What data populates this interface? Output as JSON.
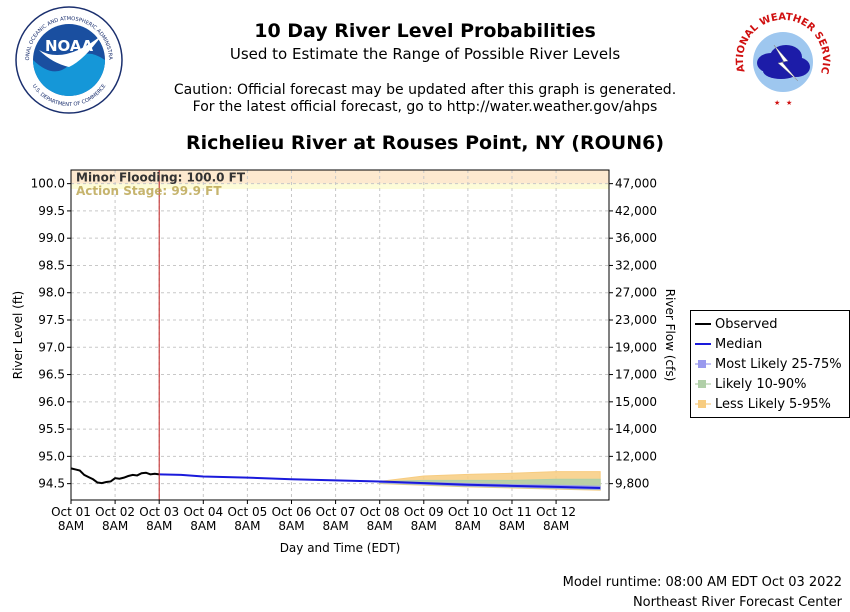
{
  "header": {
    "title": "10 Day River Level Probabilities",
    "subtitle": "Used to Estimate the Range of Possible River Levels",
    "caution_line1": "Caution: Official forecast may be updated after this graph is generated.",
    "caution_line2": "For the latest official forecast, go to http://water.weather.gov/ahps",
    "station": "Richelieu River at Rouses Point, NY (ROUN6)"
  },
  "logos": {
    "noaa_text": "NOAA",
    "noaa_ring_top": "NATIONAL OCEANIC AND ATMOSPHERIC ADMINISTRATION",
    "noaa_ring_bottom": "U.S. DEPARTMENT OF COMMERCE",
    "nws_ring": "NATIONAL WEATHER SERVICE"
  },
  "footer": {
    "model_runtime": "Model runtime: 08:00 AM EDT Oct 03 2022",
    "center": "Northeast River Forecast Center"
  },
  "legend": {
    "items": [
      {
        "label": "Observed",
        "color": "#000000",
        "kind": "line"
      },
      {
        "label": "Median",
        "color": "#1a1adb",
        "kind": "line"
      },
      {
        "label": "Most Likely 25-75%",
        "color": "#9999ee",
        "kind": "box"
      },
      {
        "label": "Likely 10-90%",
        "color": "#b0cfa8",
        "kind": "box"
      },
      {
        "label": "Less Likely 5-95%",
        "color": "#f7cc80",
        "kind": "box"
      }
    ]
  },
  "chart_data": {
    "type": "line",
    "xlabel": "Day and Time (EDT)",
    "ylabel": "River Level (ft)",
    "y2label": "River Flow (cfs)",
    "ylim": [
      94.2,
      100.25
    ],
    "grid": true,
    "legend_placement": "right",
    "x_ticks": [
      {
        "day": "Oct 01",
        "time": "8AM",
        "t": 0
      },
      {
        "day": "Oct 02",
        "time": "8AM",
        "t": 1
      },
      {
        "day": "Oct 03",
        "time": "8AM",
        "t": 2
      },
      {
        "day": "Oct 04",
        "time": "8AM",
        "t": 3
      },
      {
        "day": "Oct 05",
        "time": "8AM",
        "t": 4
      },
      {
        "day": "Oct 06",
        "time": "8AM",
        "t": 5
      },
      {
        "day": "Oct 07",
        "time": "8AM",
        "t": 6
      },
      {
        "day": "Oct 08",
        "time": "8AM",
        "t": 7
      },
      {
        "day": "Oct 09",
        "time": "8AM",
        "t": 8
      },
      {
        "day": "Oct 10",
        "time": "8AM",
        "t": 9
      },
      {
        "day": "Oct 11",
        "time": "8AM",
        "t": 10
      },
      {
        "day": "Oct 12",
        "time": "8AM",
        "t": 11
      }
    ],
    "x_range": [
      0,
      12.2
    ],
    "y_ticks": [
      "100.0",
      "99.5",
      "99.0",
      "98.5",
      "98.0",
      "97.5",
      "97.0",
      "96.5",
      "96.0",
      "95.5",
      "95.0",
      "94.5"
    ],
    "y2_ticks": [
      "47,000",
      "42,000",
      "36,000",
      "32,000",
      "27,000",
      "23,000",
      "19,000",
      "17,000",
      "15,000",
      "14,000",
      "12,000",
      "9,800"
    ],
    "flood_stages": {
      "minor_label": "Minor Flooding: 100.0 FT",
      "minor_value": 100.0,
      "action_label": "Action Stage: 99.9 FT",
      "action_value": 99.9,
      "minor_color": "#fde9cf",
      "action_color": "#fdfcd8"
    },
    "forecast_start_t": 2,
    "series": [
      {
        "name": "Observed",
        "color": "#000000",
        "x": [
          0,
          0.1,
          0.2,
          0.3,
          0.4,
          0.5,
          0.6,
          0.7,
          0.8,
          0.9,
          1.0,
          1.1,
          1.2,
          1.3,
          1.4,
          1.5,
          1.6,
          1.7,
          1.8,
          1.9,
          2.0
        ],
        "y": [
          94.78,
          94.76,
          94.74,
          94.66,
          94.62,
          94.58,
          94.52,
          94.51,
          94.53,
          94.54,
          94.6,
          94.59,
          94.61,
          94.64,
          94.66,
          94.65,
          94.69,
          94.7,
          94.67,
          94.68,
          94.67
        ]
      },
      {
        "name": "Median",
        "color": "#1a1adb",
        "x": [
          2,
          2.5,
          3,
          4,
          5,
          6,
          7,
          8,
          9,
          10,
          11,
          12
        ],
        "y": [
          94.67,
          94.66,
          94.63,
          94.61,
          94.58,
          94.56,
          94.54,
          94.51,
          94.48,
          94.46,
          94.44,
          94.42
        ]
      }
    ],
    "bands": [
      {
        "name": "Less Likely 5-95%",
        "color": "#f7cc80",
        "x": [
          7,
          8,
          9,
          10,
          11,
          12
        ],
        "lower": [
          94.5,
          94.47,
          94.44,
          94.42,
          94.4,
          94.38
        ],
        "upper": [
          94.54,
          94.64,
          94.67,
          94.69,
          94.72,
          94.72
        ]
      },
      {
        "name": "Likely 10-90%",
        "color": "#b0cfa8",
        "x": [
          7,
          8,
          9,
          10,
          11,
          12
        ],
        "lower": [
          94.51,
          94.48,
          94.45,
          94.43,
          94.41,
          94.39
        ],
        "upper": [
          94.54,
          94.56,
          94.56,
          94.56,
          94.58,
          94.58
        ]
      },
      {
        "name": "Most Likely 25-75%",
        "color": "#9999ee",
        "x": [
          7,
          8,
          9,
          10,
          11,
          12
        ],
        "lower": [
          94.52,
          94.49,
          94.46,
          94.44,
          94.42,
          94.4
        ],
        "upper": [
          94.53,
          94.52,
          94.5,
          94.48,
          94.47,
          94.45
        ]
      }
    ]
  }
}
